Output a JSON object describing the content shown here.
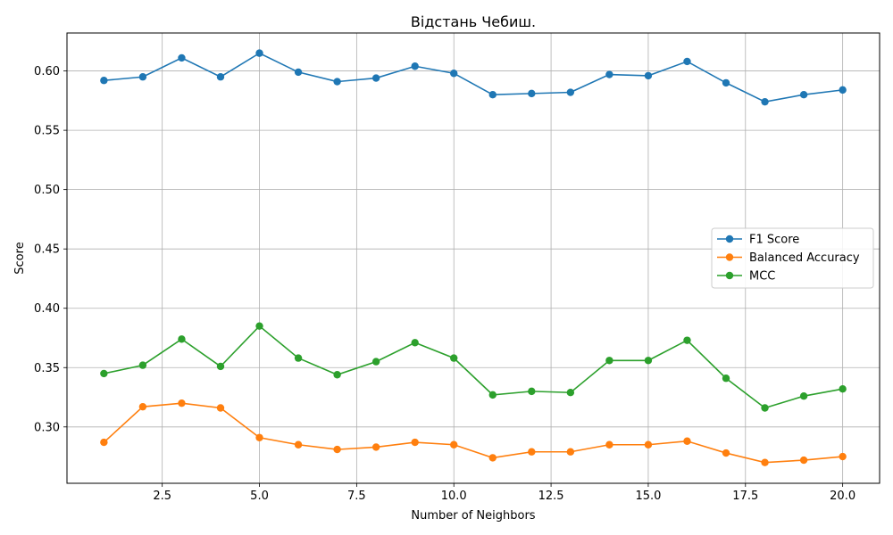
{
  "chart_data": {
    "type": "line",
    "title": "Відстань Чебиш.",
    "xlabel": "Number of Neighbors",
    "ylabel": "Score",
    "xlim": [
      0.05,
      20.95
    ],
    "ylim": [
      0.2525,
      0.632
    ],
    "xticks": [
      2.5,
      5.0,
      7.5,
      10.0,
      12.5,
      15.0,
      17.5,
      20.0
    ],
    "xtick_labels": [
      "2.5",
      "5.0",
      "7.5",
      "10.0",
      "12.5",
      "15.0",
      "17.5",
      "20.0"
    ],
    "yticks": [
      0.3,
      0.35,
      0.4,
      0.45,
      0.5,
      0.55,
      0.6
    ],
    "ytick_labels": [
      "0.30",
      "0.35",
      "0.40",
      "0.45",
      "0.50",
      "0.55",
      "0.60"
    ],
    "grid": true,
    "legend_position": "center-right",
    "x": [
      1,
      2,
      3,
      4,
      5,
      6,
      7,
      8,
      9,
      10,
      11,
      12,
      13,
      14,
      15,
      16,
      17,
      18,
      19,
      20
    ],
    "series": [
      {
        "name": "F1 Score",
        "color": "#1f77b4",
        "values": [
          0.592,
          0.595,
          0.611,
          0.595,
          0.615,
          0.599,
          0.591,
          0.594,
          0.604,
          0.598,
          0.58,
          0.581,
          0.582,
          0.597,
          0.596,
          0.608,
          0.59,
          0.574,
          0.58,
          0.584
        ]
      },
      {
        "name": "Balanced Accuracy",
        "color": "#ff7f0e",
        "values": [
          0.287,
          0.317,
          0.32,
          0.316,
          0.291,
          0.285,
          0.281,
          0.283,
          0.287,
          0.285,
          0.274,
          0.279,
          0.279,
          0.285,
          0.285,
          0.288,
          0.278,
          0.27,
          0.272,
          0.275
        ]
      },
      {
        "name": "MCC",
        "color": "#2ca02c",
        "values": [
          0.345,
          0.352,
          0.374,
          0.351,
          0.385,
          0.358,
          0.344,
          0.355,
          0.371,
          0.358,
          0.327,
          0.33,
          0.329,
          0.356,
          0.356,
          0.373,
          0.341,
          0.316,
          0.326,
          0.332
        ]
      }
    ]
  }
}
